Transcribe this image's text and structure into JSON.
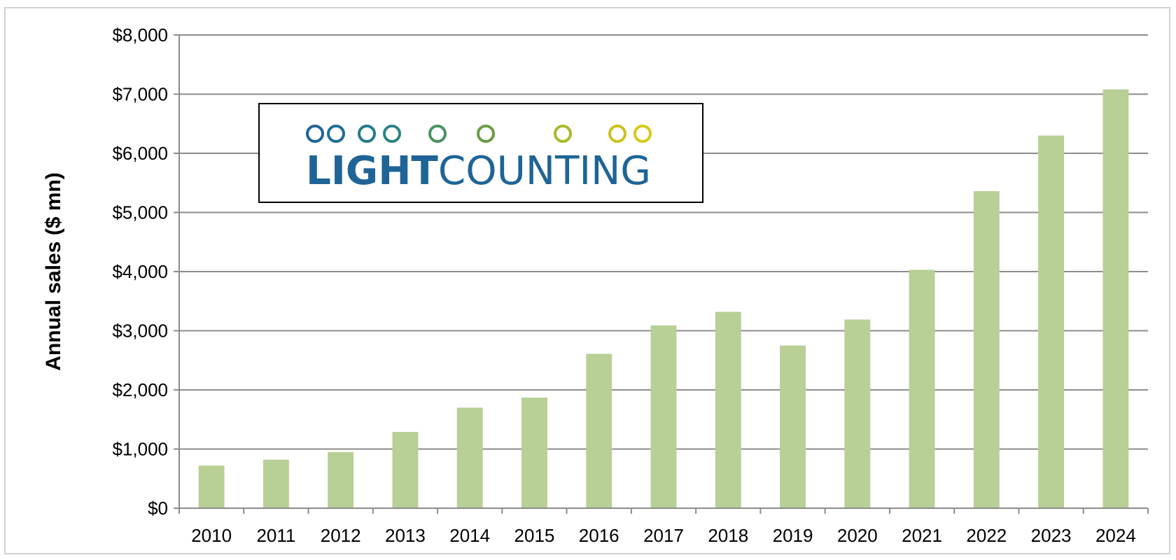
{
  "chart_data": {
    "type": "bar",
    "categories": [
      "2010",
      "2011",
      "2012",
      "2013",
      "2014",
      "2015",
      "2016",
      "2017",
      "2018",
      "2019",
      "2020",
      "2021",
      "2022",
      "2023",
      "2024"
    ],
    "values": [
      720,
      820,
      950,
      1290,
      1700,
      1870,
      2610,
      3090,
      3320,
      2750,
      3190,
      4030,
      5360,
      6300,
      7080
    ],
    "title": "",
    "xlabel": "",
    "ylabel": "Annual sales ($ mn)",
    "ylim": [
      0,
      8000
    ],
    "yticks": [
      0,
      1000,
      2000,
      3000,
      4000,
      5000,
      6000,
      7000,
      8000
    ],
    "ytick_labels": [
      "$0",
      "$1,000",
      "$2,000",
      "$3,000",
      "$4,000",
      "$5,000",
      "$6,000",
      "$7,000",
      "$8,000"
    ],
    "grid": true,
    "legend": "none",
    "bar_color": "#b8cf96",
    "gridline_color": "#8c8c8c"
  },
  "logo": {
    "bold_part": "LIGHT",
    "light_part": "COUNTING",
    "text_color": "#1f6496",
    "node_colors": [
      "#1f6496",
      "#1f6f95",
      "#267a8c",
      "#2d8483",
      "#4a9360",
      "#6a9c45",
      "#a9b82a",
      "#c9c320",
      "#d8c91a"
    ]
  }
}
